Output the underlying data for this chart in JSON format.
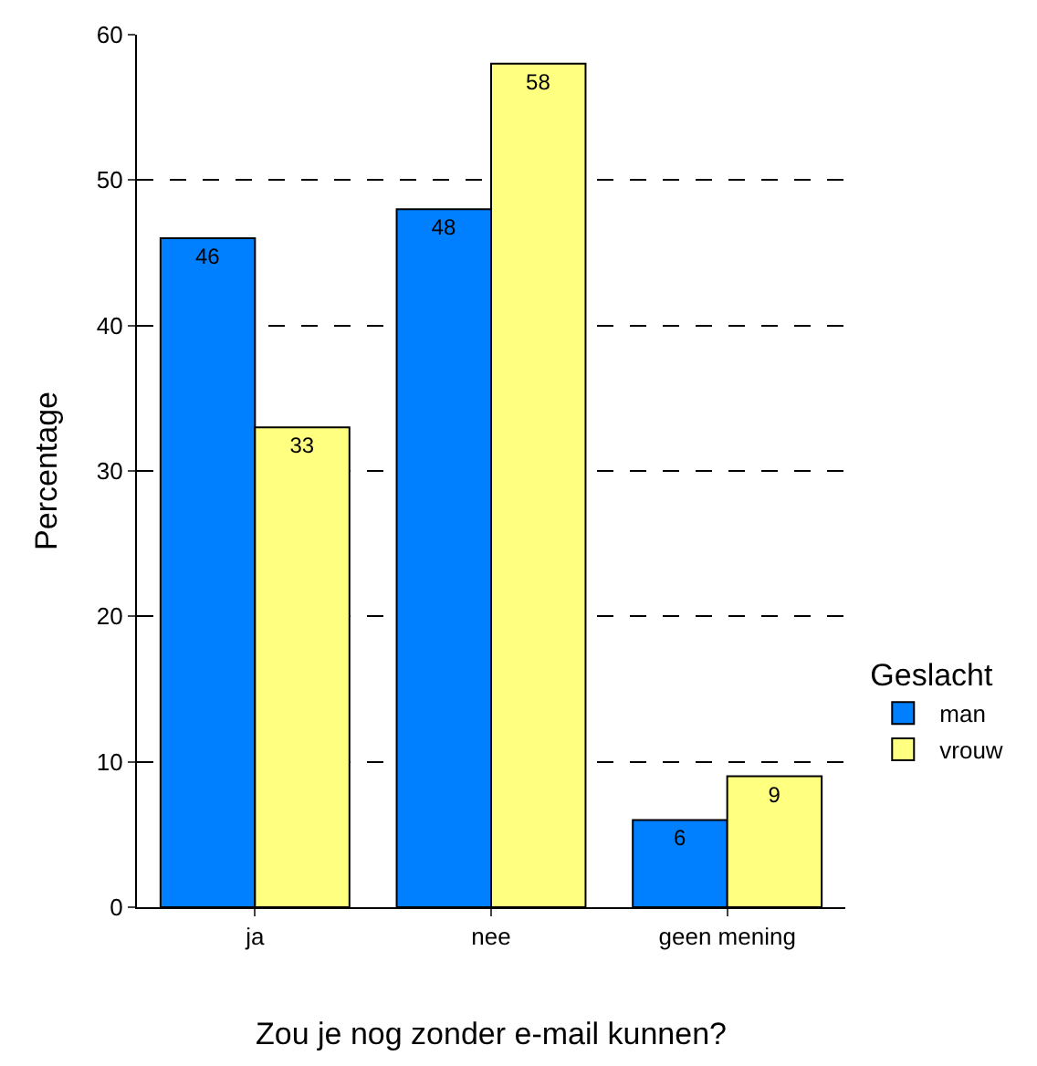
{
  "chart_data": {
    "type": "bar",
    "categories": [
      "ja",
      "nee",
      "geen mening"
    ],
    "series": [
      {
        "name": "man",
        "color": "#0080ff",
        "values": [
          46,
          48,
          6
        ]
      },
      {
        "name": "vrouw",
        "color": "#ffff80",
        "values": [
          33,
          58,
          9
        ]
      }
    ],
    "xlabel": "Zou je nog zonder e-mail kunnen?",
    "ylabel": "Percentage",
    "legend_title": "Geslacht",
    "ylim": [
      0,
      60
    ],
    "yticks": [
      0,
      10,
      20,
      30,
      40,
      50,
      60
    ],
    "grid": "y",
    "legend": "right",
    "data_labels": true
  }
}
